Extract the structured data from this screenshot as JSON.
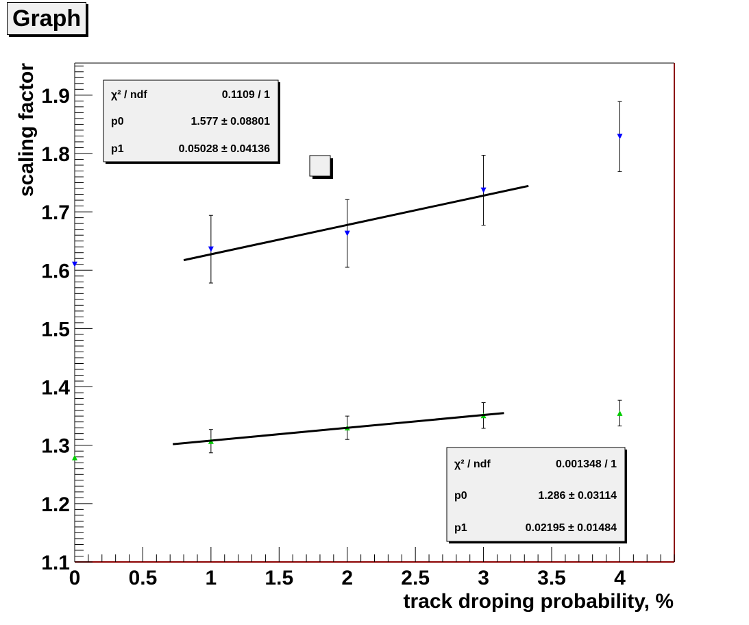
{
  "graph_title": "Graph",
  "chart_data": {
    "type": "scatter",
    "xlabel": "track droping probability, %",
    "ylabel": "scaling factor",
    "xlim": [
      0,
      4.4
    ],
    "ylim": [
      1.1,
      1.955
    ],
    "x_ticks": [
      0,
      0.5,
      1,
      1.5,
      2,
      2.5,
      3,
      3.5,
      4
    ],
    "x_tick_labels": [
      "0",
      "0.5",
      "1",
      "1.5",
      "2",
      "2.5",
      "3",
      "3.5",
      "4"
    ],
    "y_ticks": [
      1.1,
      1.2,
      1.3,
      1.4,
      1.5,
      1.6,
      1.7,
      1.8,
      1.9
    ],
    "y_tick_labels": [
      "1.1",
      "1.2",
      "1.3",
      "1.4",
      "1.5",
      "1.6",
      "1.7",
      "1.8",
      "1.9"
    ],
    "grid": false,
    "series": [
      {
        "marker": "triangle-down",
        "color": "#0000ff",
        "x": [
          0,
          1,
          2,
          3,
          4
        ],
        "y": [
          1.61,
          1.636,
          1.663,
          1.737,
          1.829
        ],
        "err": [
          0,
          0.058,
          0.058,
          0.06,
          0.06
        ],
        "fit": {
          "x_range": [
            0.8,
            3.33
          ],
          "p0": 1.577,
          "p1": 0.05028
        }
      },
      {
        "marker": "triangle-up",
        "color": "#00cc00",
        "x": [
          0,
          1,
          2,
          3,
          4
        ],
        "y": [
          1.279,
          1.307,
          1.33,
          1.351,
          1.355
        ],
        "err": [
          0,
          0.02,
          0.02,
          0.022,
          0.022
        ],
        "fit": {
          "x_range": [
            0.72,
            3.15
          ],
          "p0": 1.286,
          "p1": 0.02195
        }
      }
    ],
    "stat_boxes": [
      {
        "rows": [
          {
            "name": "χ² / ndf",
            "value": "0.1109 / 1"
          },
          {
            "name": "p0",
            "value": "1.577 ± 0.08801"
          },
          {
            "name": "p1",
            "value": "0.05028 ± 0.04136"
          }
        ]
      },
      {
        "rows": [
          {
            "name": "χ² / ndf",
            "value": "0.001348 / 1"
          },
          {
            "name": "p0",
            "value": "1.286 ± 0.03114"
          },
          {
            "name": "p1",
            "value": "0.02195 ± 0.01484"
          }
        ]
      }
    ]
  }
}
